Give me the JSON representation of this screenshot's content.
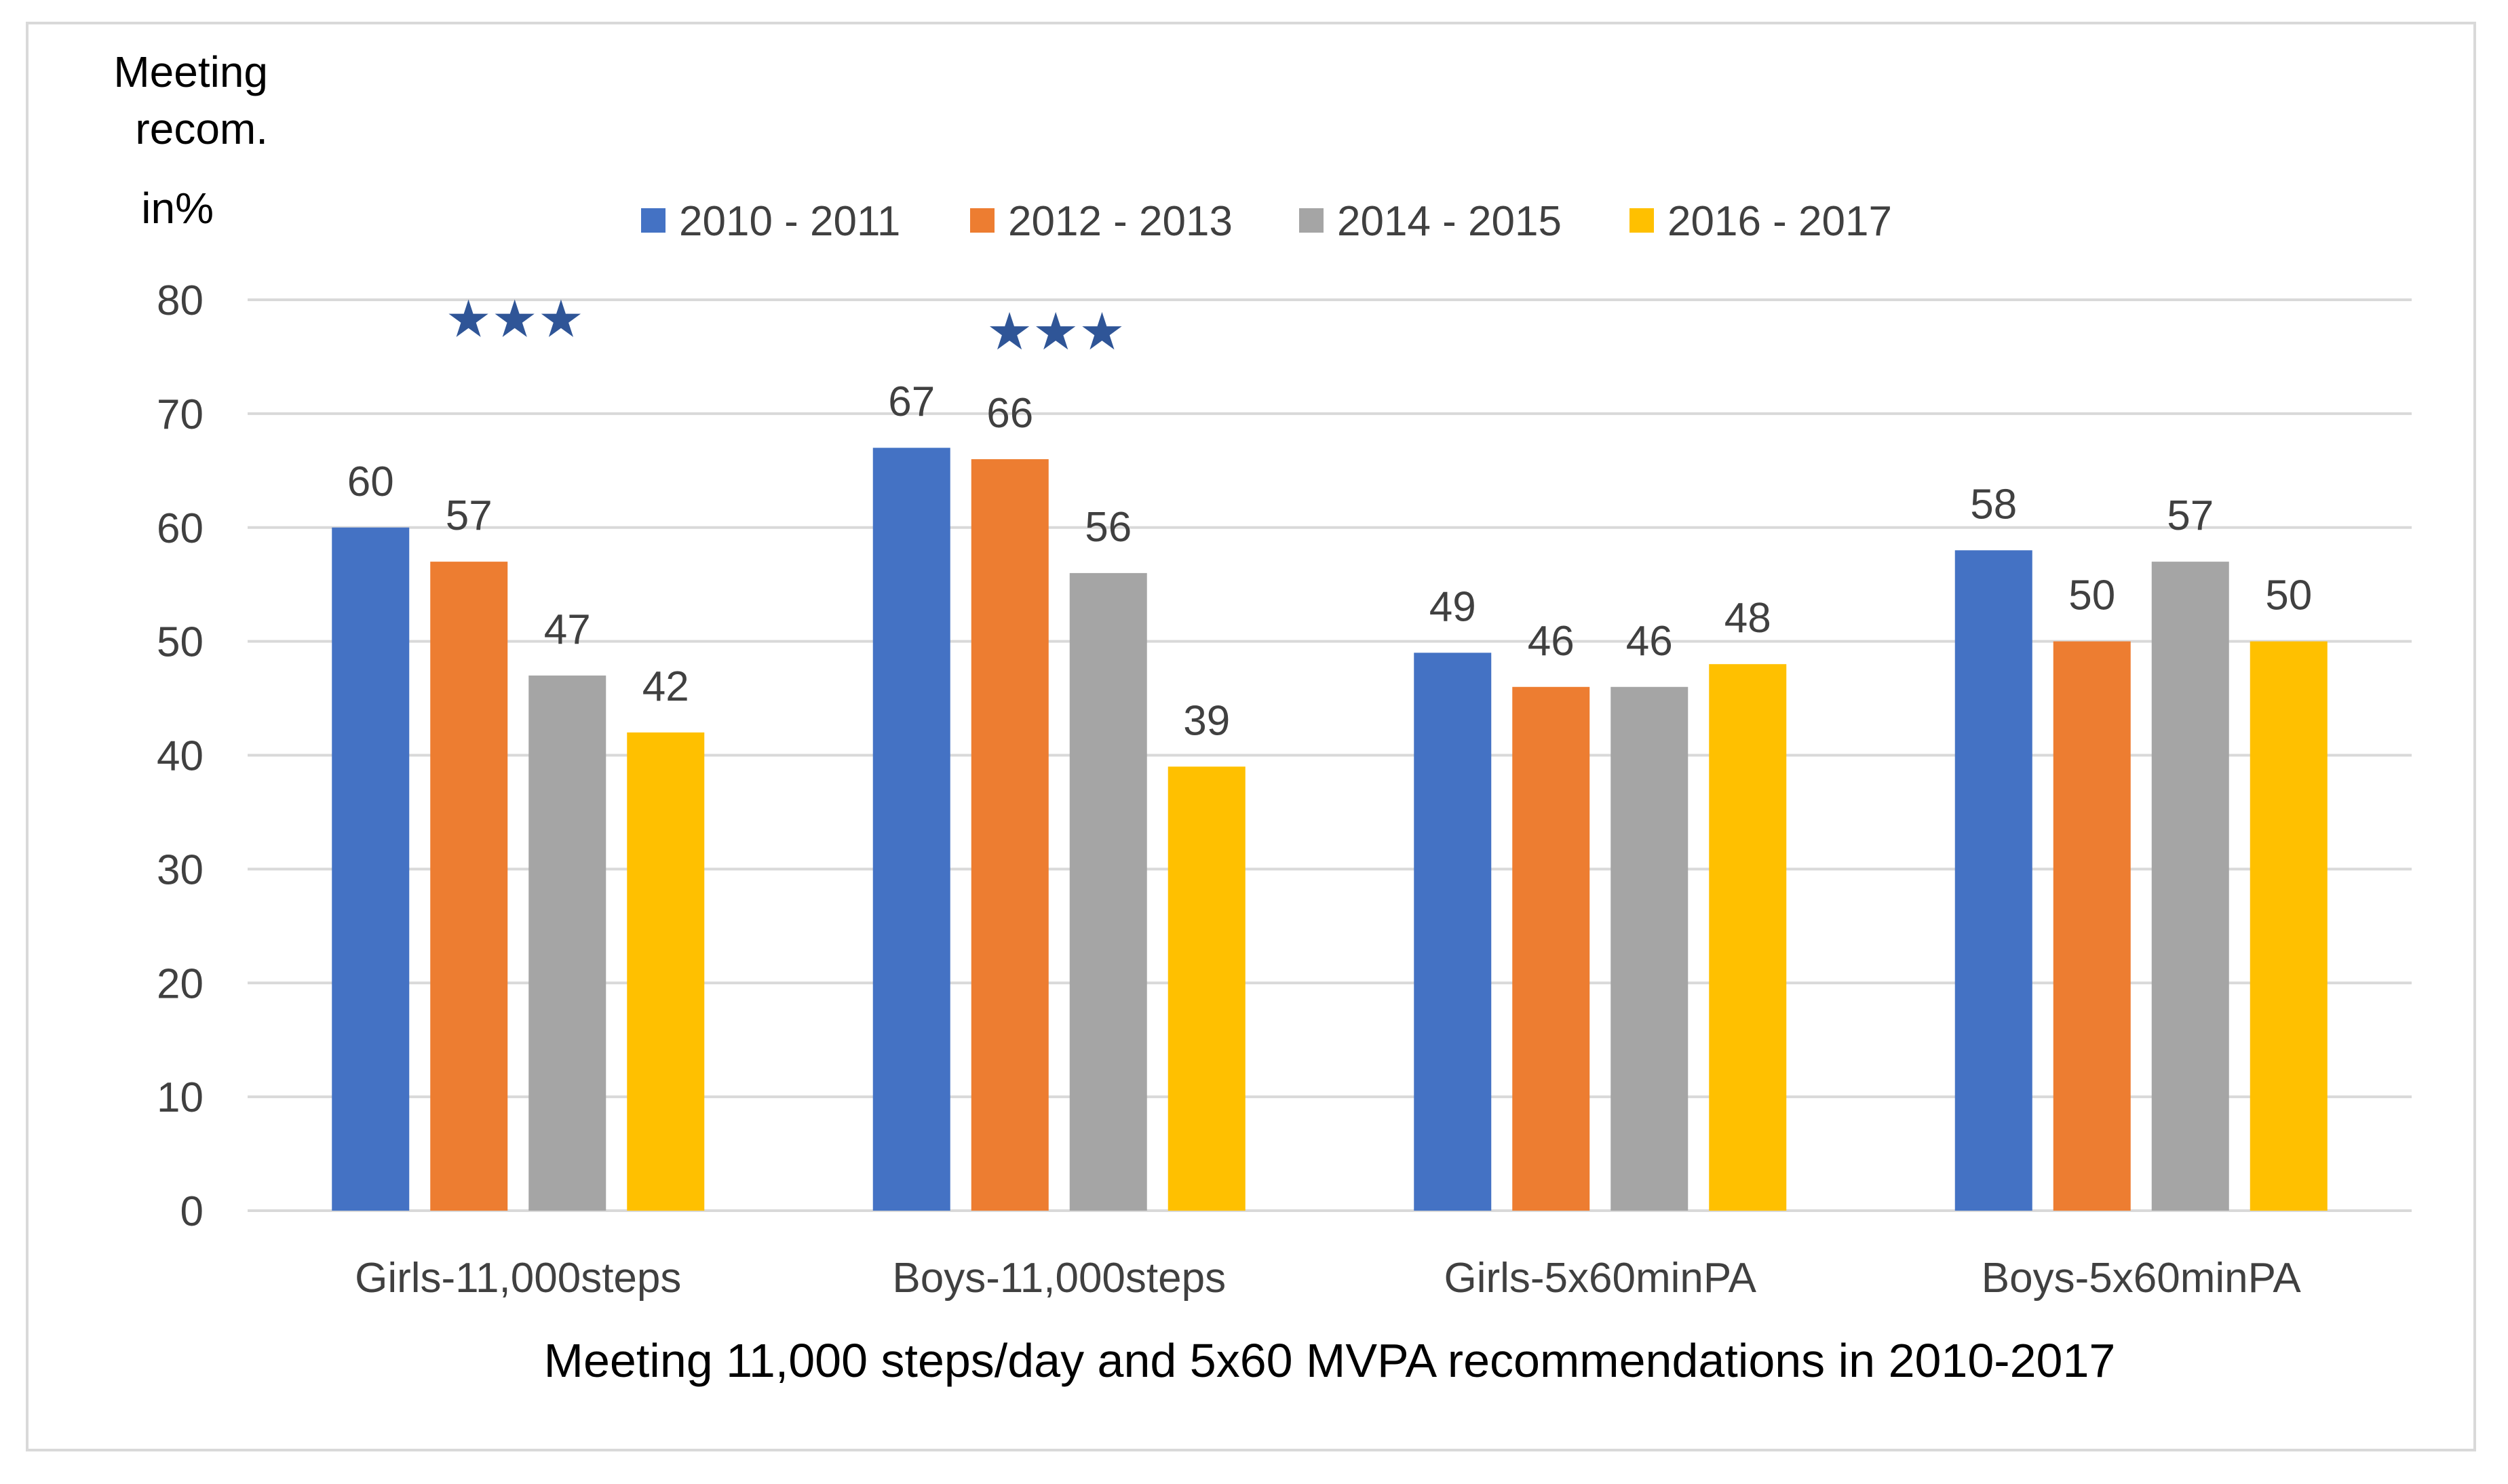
{
  "chart_data": {
    "type": "bar",
    "title": "",
    "ylabel": [
      "Meeting",
      "recom.",
      "in%"
    ],
    "xlabel": "Meeting 11,000 steps/day and 5x60 MVPA recommendations in 2010-2017",
    "ylim": [
      0,
      80
    ],
    "yticks": [
      0,
      10,
      20,
      30,
      40,
      50,
      60,
      70,
      80
    ],
    "grid": true,
    "legend_position": "top",
    "categories": [
      "Girls-11,000steps",
      "Boys-11,000steps",
      "Girls-5x60minPA",
      "Boys-5x60minPA"
    ],
    "series": [
      {
        "name": "2010 - 2011",
        "color": "#4472C4",
        "values": [
          60,
          67,
          49,
          58
        ]
      },
      {
        "name": "2012 - 2013",
        "color": "#ED7D31",
        "values": [
          57,
          66,
          46,
          50
        ]
      },
      {
        "name": "2014 - 2015",
        "color": "#A5A5A5",
        "values": [
          47,
          56,
          46,
          57
        ]
      },
      {
        "name": "2016 - 2017",
        "color": "#FFC000",
        "values": [
          42,
          39,
          48,
          50
        ]
      }
    ],
    "annotations": [
      {
        "category": "Girls-11,000steps",
        "text": "★★★",
        "value": 78.3
      },
      {
        "category": "Boys-11,000steps",
        "text": "★★★",
        "value": 77.2
      }
    ],
    "annotation_color": "#2F5597",
    "grid_color": "#D9D9D9",
    "text_color": "#404040"
  }
}
